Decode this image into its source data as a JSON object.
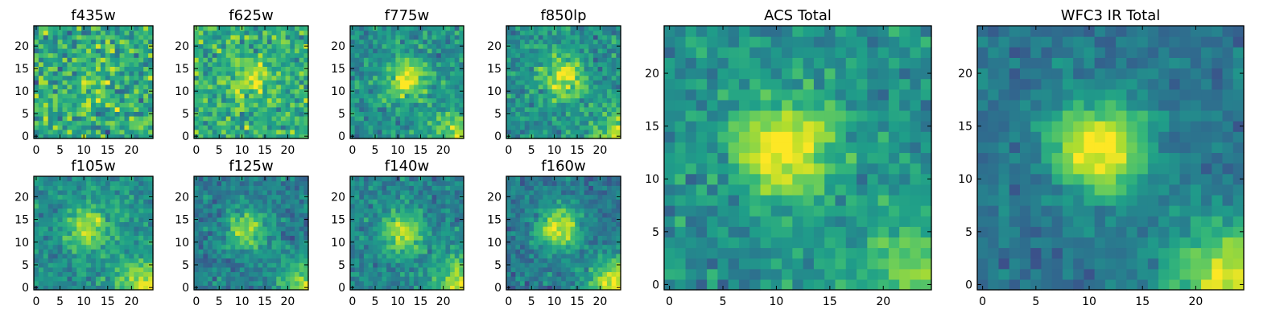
{
  "colors": {
    "colormap": "viridis",
    "frame": "#000000",
    "background": "#ffffff"
  },
  "chart_data": [
    {
      "type": "heatmap",
      "title": "f435w",
      "grid": [
        25,
        25
      ],
      "xlim": [
        0,
        24
      ],
      "ylim": [
        0,
        24
      ],
      "xticks": [
        "0",
        "5",
        "10",
        "15",
        "20"
      ],
      "yticks": [
        "0",
        "5",
        "10",
        "15",
        "20"
      ],
      "peak": [
        12,
        13
      ],
      "signal": 0.15,
      "noise": 0.55,
      "corner": 0.05,
      "base": 0.6,
      "seed": 11
    },
    {
      "type": "heatmap",
      "title": "f625w",
      "grid": [
        25,
        25
      ],
      "xlim": [
        0,
        24
      ],
      "ylim": [
        0,
        24
      ],
      "xticks": [
        "0",
        "5",
        "10",
        "15",
        "20"
      ],
      "yticks": [
        "0",
        "5",
        "10",
        "15",
        "20"
      ],
      "peak": [
        12,
        13
      ],
      "signal": 0.25,
      "noise": 0.45,
      "corner": 0.08,
      "base": 0.62,
      "seed": 23
    },
    {
      "type": "heatmap",
      "title": "f775w",
      "grid": [
        25,
        25
      ],
      "xlim": [
        0,
        24
      ],
      "ylim": [
        0,
        24
      ],
      "xticks": [
        "0",
        "5",
        "10",
        "15",
        "20"
      ],
      "yticks": [
        "0",
        "5",
        "10",
        "15",
        "20"
      ],
      "peak": [
        12,
        13
      ],
      "signal": 0.45,
      "noise": 0.35,
      "corner": 0.35,
      "base": 0.5,
      "seed": 37
    },
    {
      "type": "heatmap",
      "title": "f850lp",
      "grid": [
        25,
        25
      ],
      "xlim": [
        0,
        24
      ],
      "ylim": [
        0,
        24
      ],
      "xticks": [
        "0",
        "5",
        "10",
        "15",
        "20"
      ],
      "yticks": [
        "0",
        "5",
        "10",
        "15",
        "20"
      ],
      "peak": [
        12,
        13
      ],
      "signal": 0.45,
      "noise": 0.35,
      "corner": 0.35,
      "base": 0.5,
      "seed": 41
    },
    {
      "type": "heatmap",
      "title": "f105w",
      "grid": [
        25,
        25
      ],
      "xlim": [
        0,
        24
      ],
      "ylim": [
        0,
        24
      ],
      "xticks": [
        "0",
        "5",
        "10",
        "15",
        "20"
      ],
      "yticks": [
        "0",
        "5",
        "10",
        "15",
        "20"
      ],
      "peak": [
        11,
        13
      ],
      "signal": 0.4,
      "noise": 0.3,
      "corner": 0.45,
      "base": 0.5,
      "seed": 53
    },
    {
      "type": "heatmap",
      "title": "f125w",
      "grid": [
        25,
        25
      ],
      "xlim": [
        0,
        24
      ],
      "ylim": [
        0,
        24
      ],
      "xticks": [
        "0",
        "5",
        "10",
        "15",
        "20"
      ],
      "yticks": [
        "0",
        "5",
        "10",
        "15",
        "20"
      ],
      "peak": [
        11,
        13
      ],
      "signal": 0.45,
      "noise": 0.3,
      "corner": 0.45,
      "base": 0.42,
      "seed": 67
    },
    {
      "type": "heatmap",
      "title": "f140w",
      "grid": [
        25,
        25
      ],
      "xlim": [
        0,
        24
      ],
      "ylim": [
        0,
        24
      ],
      "xticks": [
        "0",
        "5",
        "10",
        "15",
        "20"
      ],
      "yticks": [
        "0",
        "5",
        "10",
        "15",
        "20"
      ],
      "peak": [
        11,
        12
      ],
      "signal": 0.45,
      "noise": 0.3,
      "corner": 0.5,
      "base": 0.45,
      "seed": 79
    },
    {
      "type": "heatmap",
      "title": "f160w",
      "grid": [
        25,
        25
      ],
      "xlim": [
        0,
        24
      ],
      "ylim": [
        0,
        24
      ],
      "xticks": [
        "0",
        "5",
        "10",
        "15",
        "20"
      ],
      "yticks": [
        "0",
        "5",
        "10",
        "15",
        "20"
      ],
      "peak": [
        11,
        13
      ],
      "signal": 0.55,
      "noise": 0.28,
      "corner": 0.6,
      "base": 0.4,
      "seed": 97
    },
    {
      "type": "heatmap",
      "title": "ACS Total",
      "grid": [
        25,
        25
      ],
      "xlim": [
        0,
        24
      ],
      "ylim": [
        0,
        24
      ],
      "xticks": [
        "0",
        "5",
        "10",
        "15",
        "20"
      ],
      "yticks": [
        "0",
        "5",
        "10",
        "15",
        "20"
      ],
      "peak": [
        11,
        13
      ],
      "signal": 0.55,
      "noise": 0.3,
      "corner": 0.3,
      "base": 0.5,
      "seed": 113
    },
    {
      "type": "heatmap",
      "title": "WFC3 IR Total",
      "grid": [
        25,
        25
      ],
      "xlim": [
        0,
        24
      ],
      "ylim": [
        0,
        24
      ],
      "xticks": [
        "0",
        "5",
        "10",
        "15",
        "20"
      ],
      "yticks": [
        "0",
        "5",
        "10",
        "15",
        "20"
      ],
      "peak": [
        11,
        13
      ],
      "signal": 0.65,
      "noise": 0.22,
      "corner": 0.6,
      "base": 0.38,
      "seed": 131
    }
  ]
}
